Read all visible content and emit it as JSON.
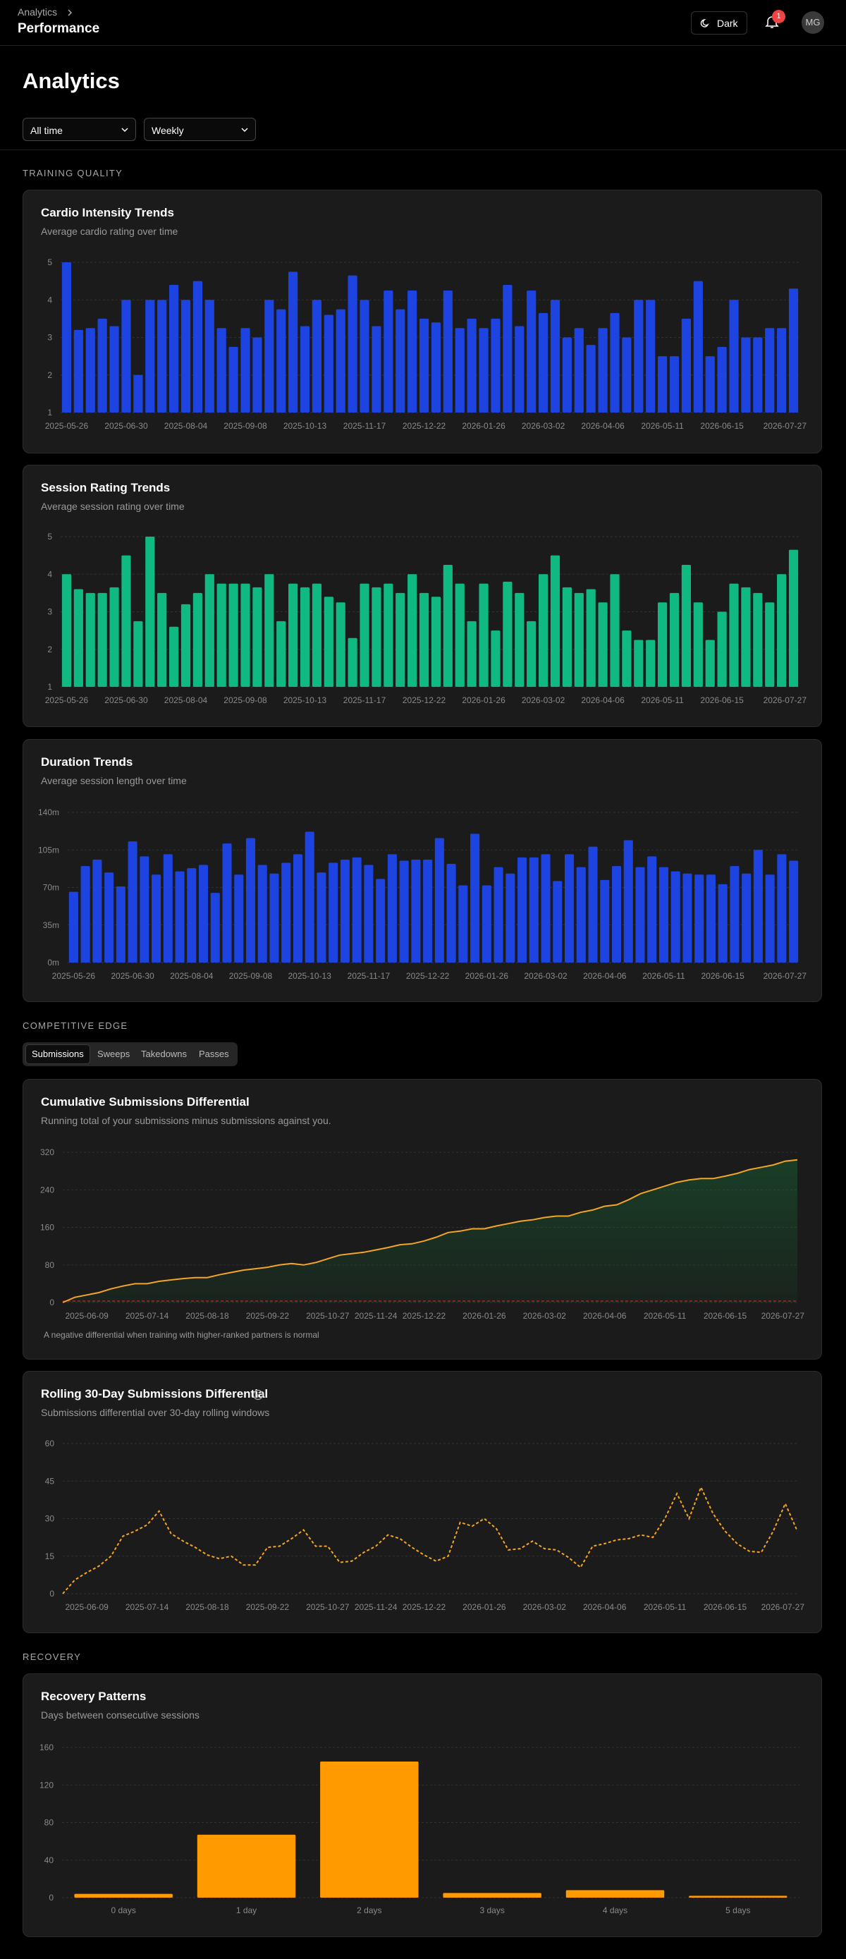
{
  "header": {
    "breadcrumb": "Analytics",
    "title": "Performance",
    "theme_button": "Dark",
    "notifications": 1,
    "avatar": "MG"
  },
  "page_title": "Analytics",
  "filters": {
    "range": "All time",
    "interval": "Weekly"
  },
  "sections": [
    "TRAINING QUALITY",
    "COMPETITIVE EDGE",
    "RECOVERY"
  ],
  "tabs": [
    "Submissions",
    "Sweeps",
    "Takedowns",
    "Passes"
  ],
  "chart_data": [
    {
      "type": "bar",
      "title": "Cardio Intensity Trends",
      "subtitle": "Average cardio rating over time",
      "color": "#1d44e0",
      "grid": true,
      "categories": [
        "2025-05-26",
        null,
        null,
        null,
        null,
        "2025-06-30",
        null,
        null,
        null,
        null,
        "2025-08-04",
        null,
        null,
        null,
        null,
        "2025-09-08",
        null,
        null,
        null,
        null,
        "2025-10-13",
        null,
        null,
        null,
        null,
        "2025-11-17",
        null,
        null,
        null,
        null,
        "2025-12-22",
        null,
        null,
        null,
        null,
        "2026-01-26",
        null,
        null,
        null,
        null,
        "2026-03-02",
        null,
        null,
        null,
        null,
        "2026-04-06",
        null,
        null,
        null,
        null,
        "2026-05-11",
        null,
        null,
        null,
        null,
        "2026-06-15",
        null,
        null,
        null,
        null,
        null,
        "2026-07-27"
      ],
      "values": [
        5.0,
        3.2,
        3.25,
        3.5,
        3.3,
        4.0,
        2.0,
        4.0,
        4.0,
        4.4,
        4.0,
        4.5,
        4.0,
        3.25,
        2.75,
        3.25,
        3.0,
        4.0,
        3.75,
        4.75,
        3.3,
        4.0,
        3.6,
        3.75,
        4.65,
        4.0,
        3.3,
        4.25,
        3.75,
        4.25,
        3.5,
        3.4,
        4.25,
        3.25,
        3.5,
        3.25,
        3.5,
        4.4,
        3.3,
        4.25,
        3.65,
        4.0,
        3.0,
        3.25,
        2.8,
        3.25,
        3.65,
        3.0,
        4.0,
        4.0,
        2.5,
        2.5,
        3.5,
        4.5,
        2.5,
        2.75,
        4.0,
        3.0,
        3.0,
        3.25,
        3.25,
        4.3
      ],
      "ylim": [
        1,
        5
      ],
      "yticks": [
        1,
        2,
        3,
        4,
        5
      ]
    },
    {
      "type": "bar",
      "title": "Session Rating Trends",
      "subtitle": "Average session rating over time",
      "color": "#10b981",
      "grid": true,
      "categories": [
        "2025-05-26",
        null,
        null,
        null,
        null,
        "2025-06-30",
        null,
        null,
        null,
        null,
        "2025-08-04",
        null,
        null,
        null,
        null,
        "2025-09-08",
        null,
        null,
        null,
        null,
        "2025-10-13",
        null,
        null,
        null,
        null,
        "2025-11-17",
        null,
        null,
        null,
        null,
        "2025-12-22",
        null,
        null,
        null,
        null,
        "2026-01-26",
        null,
        null,
        null,
        null,
        "2026-03-02",
        null,
        null,
        null,
        null,
        "2026-04-06",
        null,
        null,
        null,
        null,
        "2026-05-11",
        null,
        null,
        null,
        null,
        "2026-06-15",
        null,
        null,
        null,
        null,
        null,
        "2026-07-27"
      ],
      "values": [
        4.0,
        3.6,
        3.5,
        3.5,
        3.65,
        4.5,
        2.75,
        5.0,
        3.5,
        2.6,
        3.2,
        3.5,
        4.0,
        3.75,
        3.75,
        3.75,
        3.65,
        4.0,
        2.75,
        3.75,
        3.65,
        3.75,
        3.4,
        3.25,
        2.3,
        3.75,
        3.65,
        3.75,
        3.5,
        4.0,
        3.5,
        3.4,
        4.25,
        3.75,
        2.75,
        3.75,
        2.5,
        3.8,
        3.5,
        2.75,
        4.0,
        4.5,
        3.65,
        3.5,
        3.6,
        3.25,
        4.0,
        2.5,
        2.25,
        2.25,
        3.25,
        3.5,
        4.25,
        3.25,
        2.25,
        3.0,
        3.75,
        3.65,
        3.5,
        3.25,
        4.0,
        4.65
      ],
      "ylim": [
        1,
        5
      ],
      "yticks": [
        1,
        2,
        3,
        4,
        5
      ]
    },
    {
      "type": "bar",
      "title": "Duration Trends",
      "subtitle": "Average session length over time",
      "color": "#1d44e0",
      "grid": true,
      "categories": [
        "2025-05-26",
        null,
        null,
        null,
        null,
        "2025-06-30",
        null,
        null,
        null,
        null,
        "2025-08-04",
        null,
        null,
        null,
        null,
        "2025-09-08",
        null,
        null,
        null,
        null,
        "2025-10-13",
        null,
        null,
        null,
        null,
        "2025-11-17",
        null,
        null,
        null,
        null,
        "2025-12-22",
        null,
        null,
        null,
        null,
        "2026-01-26",
        null,
        null,
        null,
        null,
        "2026-03-02",
        null,
        null,
        null,
        null,
        "2026-04-06",
        null,
        null,
        null,
        null,
        "2026-05-11",
        null,
        null,
        null,
        null,
        "2026-06-15",
        null,
        null,
        null,
        null,
        null,
        "2026-07-27"
      ],
      "values": [
        66,
        90,
        96,
        84,
        71,
        113,
        99,
        82,
        101,
        85,
        88,
        91,
        65,
        111,
        82,
        116,
        91,
        83,
        93,
        101,
        122,
        84,
        93,
        96,
        98,
        91,
        78,
        101,
        95,
        96,
        96,
        116,
        92,
        72,
        120,
        72,
        89,
        83,
        98,
        98,
        101,
        76,
        101,
        89,
        108,
        77,
        90,
        114,
        89,
        99,
        89,
        85,
        83,
        82,
        82,
        73,
        90,
        83,
        105,
        82,
        101,
        95
      ],
      "ylim": [
        0,
        140
      ],
      "yticks": [
        {
          "value": 0,
          "label": "0m"
        },
        {
          "value": 35,
          "label": "35m"
        },
        {
          "value": 70,
          "label": "70m"
        },
        {
          "value": 105,
          "label": "105m"
        },
        {
          "value": 140,
          "label": "140m"
        }
      ]
    },
    {
      "type": "area",
      "title": "Cumulative Submissions Differential",
      "subtitle": "Running total of your submissions minus submissions against you.",
      "note": "A negative differential when training with higher-ranked partners is normal",
      "color": "#f5a524",
      "fill_color": "#15803d",
      "baseline_color": "#b91c1c",
      "grid": true,
      "categories": [
        null,
        null,
        "2025-06-09",
        null,
        null,
        null,
        null,
        "2025-07-14",
        null,
        null,
        null,
        null,
        "2025-08-18",
        null,
        null,
        null,
        null,
        "2025-09-22",
        null,
        null,
        null,
        null,
        "2025-10-27",
        null,
        null,
        null,
        "2025-11-24",
        null,
        null,
        null,
        "2025-12-22",
        null,
        null,
        null,
        null,
        "2026-01-26",
        null,
        null,
        null,
        null,
        "2026-03-02",
        null,
        null,
        null,
        null,
        "2026-04-06",
        null,
        null,
        null,
        null,
        "2026-05-11",
        null,
        null,
        null,
        null,
        "2026-06-15",
        null,
        null,
        null,
        null,
        null,
        "2026-07-27"
      ],
      "values": [
        0,
        11,
        16,
        21,
        29,
        35,
        40,
        40,
        45,
        48,
        51,
        53,
        53,
        59,
        64,
        69,
        72,
        75,
        80,
        83,
        80,
        85,
        93,
        101,
        104,
        107,
        112,
        117,
        123,
        125,
        131,
        139,
        149,
        152,
        157,
        157,
        163,
        168,
        173,
        176,
        181,
        184,
        184,
        192,
        197,
        205,
        208,
        219,
        232,
        240,
        248,
        256,
        261,
        264,
        264,
        269,
        275,
        283,
        288,
        293,
        301,
        304
      ],
      "ylim": [
        0,
        320
      ],
      "yticks": [
        0,
        80,
        160,
        240,
        320
      ]
    },
    {
      "type": "line",
      "title": "Rolling 30-Day Submissions Differential",
      "subtitle": "Submissions differential over 30-day rolling windows",
      "color": "#f5a524",
      "line_style": "dashed",
      "grid": true,
      "categories": [
        null,
        null,
        "2025-06-09",
        null,
        null,
        null,
        null,
        "2025-07-14",
        null,
        null,
        null,
        null,
        "2025-08-18",
        null,
        null,
        null,
        null,
        "2025-09-22",
        null,
        null,
        null,
        null,
        "2025-10-27",
        null,
        null,
        null,
        "2025-11-24",
        null,
        null,
        null,
        "2025-12-22",
        null,
        null,
        null,
        null,
        "2026-01-26",
        null,
        null,
        null,
        null,
        "2026-03-02",
        null,
        null,
        null,
        null,
        "2026-04-06",
        null,
        null,
        null,
        null,
        "2026-05-11",
        null,
        null,
        null,
        null,
        "2026-06-15",
        null,
        null,
        null,
        null,
        null,
        "2026-07-27"
      ],
      "values": [
        0,
        5.5,
        8.5,
        11,
        15,
        23,
        25,
        27.5,
        33,
        24,
        21,
        18.5,
        15.5,
        14,
        15,
        11.5,
        11.5,
        18.5,
        19,
        22,
        25.5,
        19,
        19,
        12.5,
        13,
        16.5,
        19,
        23.5,
        22,
        18.5,
        15.5,
        13,
        15,
        28.5,
        27,
        30,
        26,
        17.5,
        18,
        21,
        18,
        17.5,
        14.5,
        10.5,
        19,
        20,
        21.5,
        22,
        23.5,
        22.5,
        30,
        40,
        30,
        42.5,
        32,
        25,
        20,
        17,
        16.5,
        25,
        36,
        25
      ],
      "ylim": [
        0,
        60
      ],
      "yticks": [
        0,
        15,
        30,
        45,
        60
      ]
    },
    {
      "type": "bar",
      "title": "Recovery Patterns",
      "subtitle": "Days between consecutive sessions",
      "color": "#ff9a00",
      "grid": true,
      "categories": [
        "0 days",
        "1 day",
        "2 days",
        "3 days",
        "4 days",
        "5 days"
      ],
      "values": [
        4,
        67,
        145,
        5,
        8,
        2
      ],
      "ylim": [
        0,
        160
      ],
      "yticks": [
        0,
        40,
        80,
        120,
        160
      ]
    }
  ]
}
